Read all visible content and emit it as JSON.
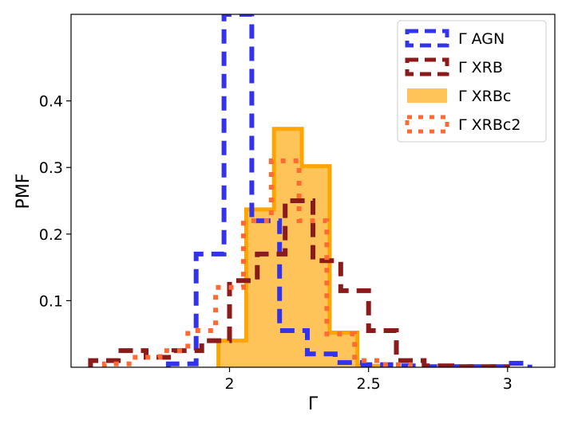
{
  "chart_data": {
    "type": "histogram-step",
    "title": "",
    "xlabel": "Γ",
    "ylabel": "PMF",
    "xlim": [
      1.43,
      3.17
    ],
    "ylim": [
      0,
      0.53
    ],
    "xticks": [
      {
        "value": 2,
        "label": "2"
      },
      {
        "value": 2.5,
        "label": "2.5"
      },
      {
        "value": 3,
        "label": "3"
      }
    ],
    "yticks": [
      {
        "value": 0.1,
        "label": "0.1"
      },
      {
        "value": 0.2,
        "label": "0.2"
      },
      {
        "value": 0.3,
        "label": "0.3"
      },
      {
        "value": 0.4,
        "label": "0.4"
      }
    ],
    "legend_position": "top-right",
    "series": [
      {
        "name": "Γ AGN",
        "style": "dashed",
        "color": "#3333ee",
        "fill": false,
        "edges": [
          1.78,
          1.88,
          1.98,
          2.08,
          2.18,
          2.28,
          2.38,
          2.48,
          2.58,
          2.68,
          2.78,
          2.88,
          2.98,
          3.08
        ],
        "values": [
          0.005,
          0.17,
          0.53,
          0.22,
          0.055,
          0.02,
          0.007,
          0.004,
          0.002,
          0.001,
          0.001,
          0.001,
          0.006
        ]
      },
      {
        "name": "Γ XRB",
        "style": "dashed",
        "color": "#8b1a1a",
        "fill": false,
        "edges": [
          1.5,
          1.6,
          1.7,
          1.8,
          1.9,
          2.0,
          2.1,
          2.2,
          2.3,
          2.4,
          2.5,
          2.6,
          2.7,
          2.8,
          2.9,
          3.0
        ],
        "values": [
          0.01,
          0.025,
          0.015,
          0.025,
          0.04,
          0.13,
          0.17,
          0.25,
          0.16,
          0.115,
          0.055,
          0.01,
          0.002,
          0.001,
          0.001
        ]
      },
      {
        "name": "Γ XRBc",
        "style": "solid-filled",
        "color": "#ffa500",
        "fill": true,
        "edges": [
          1.96,
          2.06,
          2.16,
          2.26,
          2.36,
          2.46,
          2.56
        ],
        "values": [
          0.04,
          0.237,
          0.358,
          0.302,
          0.052,
          0.002
        ]
      },
      {
        "name": "Γ XRBc2",
        "style": "dotted",
        "color": "#ff6a33",
        "fill": false,
        "edges": [
          1.55,
          1.65,
          1.75,
          1.85,
          1.95,
          2.05,
          2.15,
          2.25,
          2.35,
          2.45,
          2.55,
          2.65
        ],
        "values": [
          0.005,
          0.015,
          0.025,
          0.055,
          0.12,
          0.22,
          0.31,
          0.22,
          0.05,
          0.01,
          0.004
        ]
      }
    ]
  }
}
